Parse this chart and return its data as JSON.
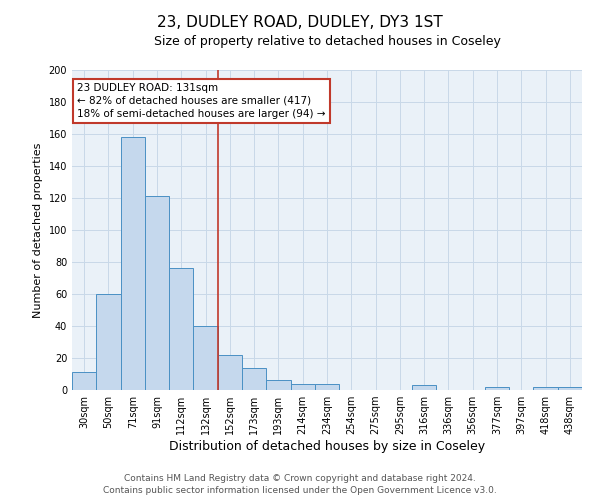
{
  "title": "23, DUDLEY ROAD, DUDLEY, DY3 1ST",
  "subtitle": "Size of property relative to detached houses in Coseley",
  "xlabel": "Distribution of detached houses by size in Coseley",
  "ylabel": "Number of detached properties",
  "bar_labels": [
    "30sqm",
    "50sqm",
    "71sqm",
    "91sqm",
    "112sqm",
    "132sqm",
    "152sqm",
    "173sqm",
    "193sqm",
    "214sqm",
    "234sqm",
    "254sqm",
    "275sqm",
    "295sqm",
    "316sqm",
    "336sqm",
    "356sqm",
    "377sqm",
    "397sqm",
    "418sqm",
    "438sqm"
  ],
  "bar_values": [
    11,
    60,
    158,
    121,
    76,
    40,
    22,
    14,
    6,
    4,
    4,
    0,
    0,
    0,
    3,
    0,
    0,
    2,
    0,
    2,
    2
  ],
  "bar_color": "#c5d8ed",
  "bar_edge_color": "#4a90c4",
  "vline_x": 5.5,
  "vline_color": "#c0392b",
  "annotation_text": "23 DUDLEY ROAD: 131sqm\n← 82% of detached houses are smaller (417)\n18% of semi-detached houses are larger (94) →",
  "annotation_box_color": "white",
  "annotation_box_edge_color": "#c0392b",
  "ylim": [
    0,
    200
  ],
  "yticks": [
    0,
    20,
    40,
    60,
    80,
    100,
    120,
    140,
    160,
    180,
    200
  ],
  "grid_color": "#c8d8e8",
  "background_color": "#eaf1f8",
  "footer_text": "Contains HM Land Registry data © Crown copyright and database right 2024.\nContains public sector information licensed under the Open Government Licence v3.0.",
  "title_fontsize": 11,
  "subtitle_fontsize": 9,
  "xlabel_fontsize": 9,
  "ylabel_fontsize": 8,
  "tick_fontsize": 7,
  "annotation_fontsize": 7.5,
  "footer_fontsize": 6.5
}
